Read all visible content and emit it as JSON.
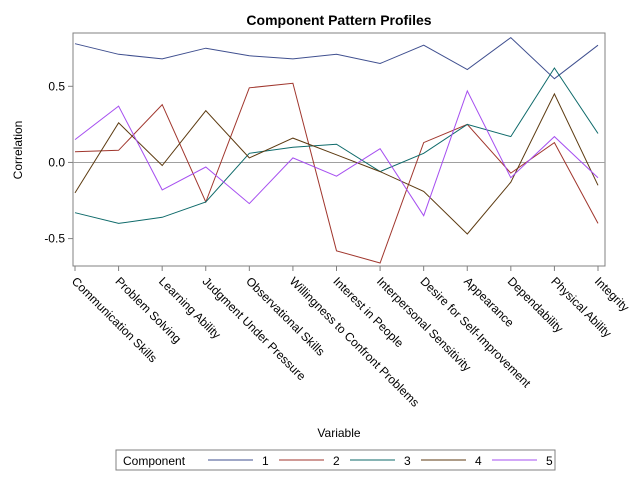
{
  "chart_data": {
    "type": "line",
    "title": "Component Pattern Profiles",
    "xlabel": "Variable",
    "ylabel": "Correlation",
    "categories": [
      "Communication Skills",
      "Problem Solving",
      "Learning Ability",
      "Judgment Under Pressure",
      "Observational Skills",
      "Willingness to Confront Problems",
      "Interest in People",
      "Interpersonal Sensitivity",
      "Desire for Self-Improvement",
      "Appearance",
      "Dependability",
      "Physical Ability",
      "Integrity"
    ],
    "ylim": [
      -0.68,
      0.85
    ],
    "yticks": [
      "-0.5",
      "0.0",
      "0.5"
    ],
    "ytick_values": [
      -0.5,
      0.0,
      0.5
    ],
    "reference_line": 0.0,
    "legend_title": "Component",
    "legend_position": "bottom",
    "series": [
      {
        "name": "1",
        "color": "#3f4f8f",
        "values": [
          0.78,
          0.71,
          0.68,
          0.75,
          0.7,
          0.68,
          0.71,
          0.65,
          0.77,
          0.61,
          0.82,
          0.55,
          0.77
        ]
      },
      {
        "name": "2",
        "color": "#a0362d",
        "values": [
          0.07,
          0.08,
          0.38,
          -0.26,
          0.49,
          0.52,
          -0.58,
          -0.66,
          0.13,
          0.25,
          -0.07,
          0.13,
          -0.4
        ]
      },
      {
        "name": "3",
        "color": "#0e6a6a",
        "values": [
          -0.33,
          -0.4,
          -0.36,
          -0.26,
          0.06,
          0.1,
          0.12,
          -0.06,
          0.06,
          0.25,
          0.17,
          0.62,
          0.19
        ]
      },
      {
        "name": "4",
        "color": "#5c3a10",
        "values": [
          -0.2,
          0.26,
          -0.02,
          0.34,
          0.03,
          0.16,
          0.05,
          -0.06,
          -0.19,
          -0.47,
          -0.13,
          0.45,
          -0.15
        ]
      },
      {
        "name": "5",
        "color": "#a64ff0",
        "values": [
          0.15,
          0.37,
          -0.18,
          -0.03,
          -0.27,
          0.03,
          -0.09,
          0.09,
          -0.35,
          0.47,
          -0.1,
          0.17,
          -0.1
        ]
      }
    ]
  }
}
